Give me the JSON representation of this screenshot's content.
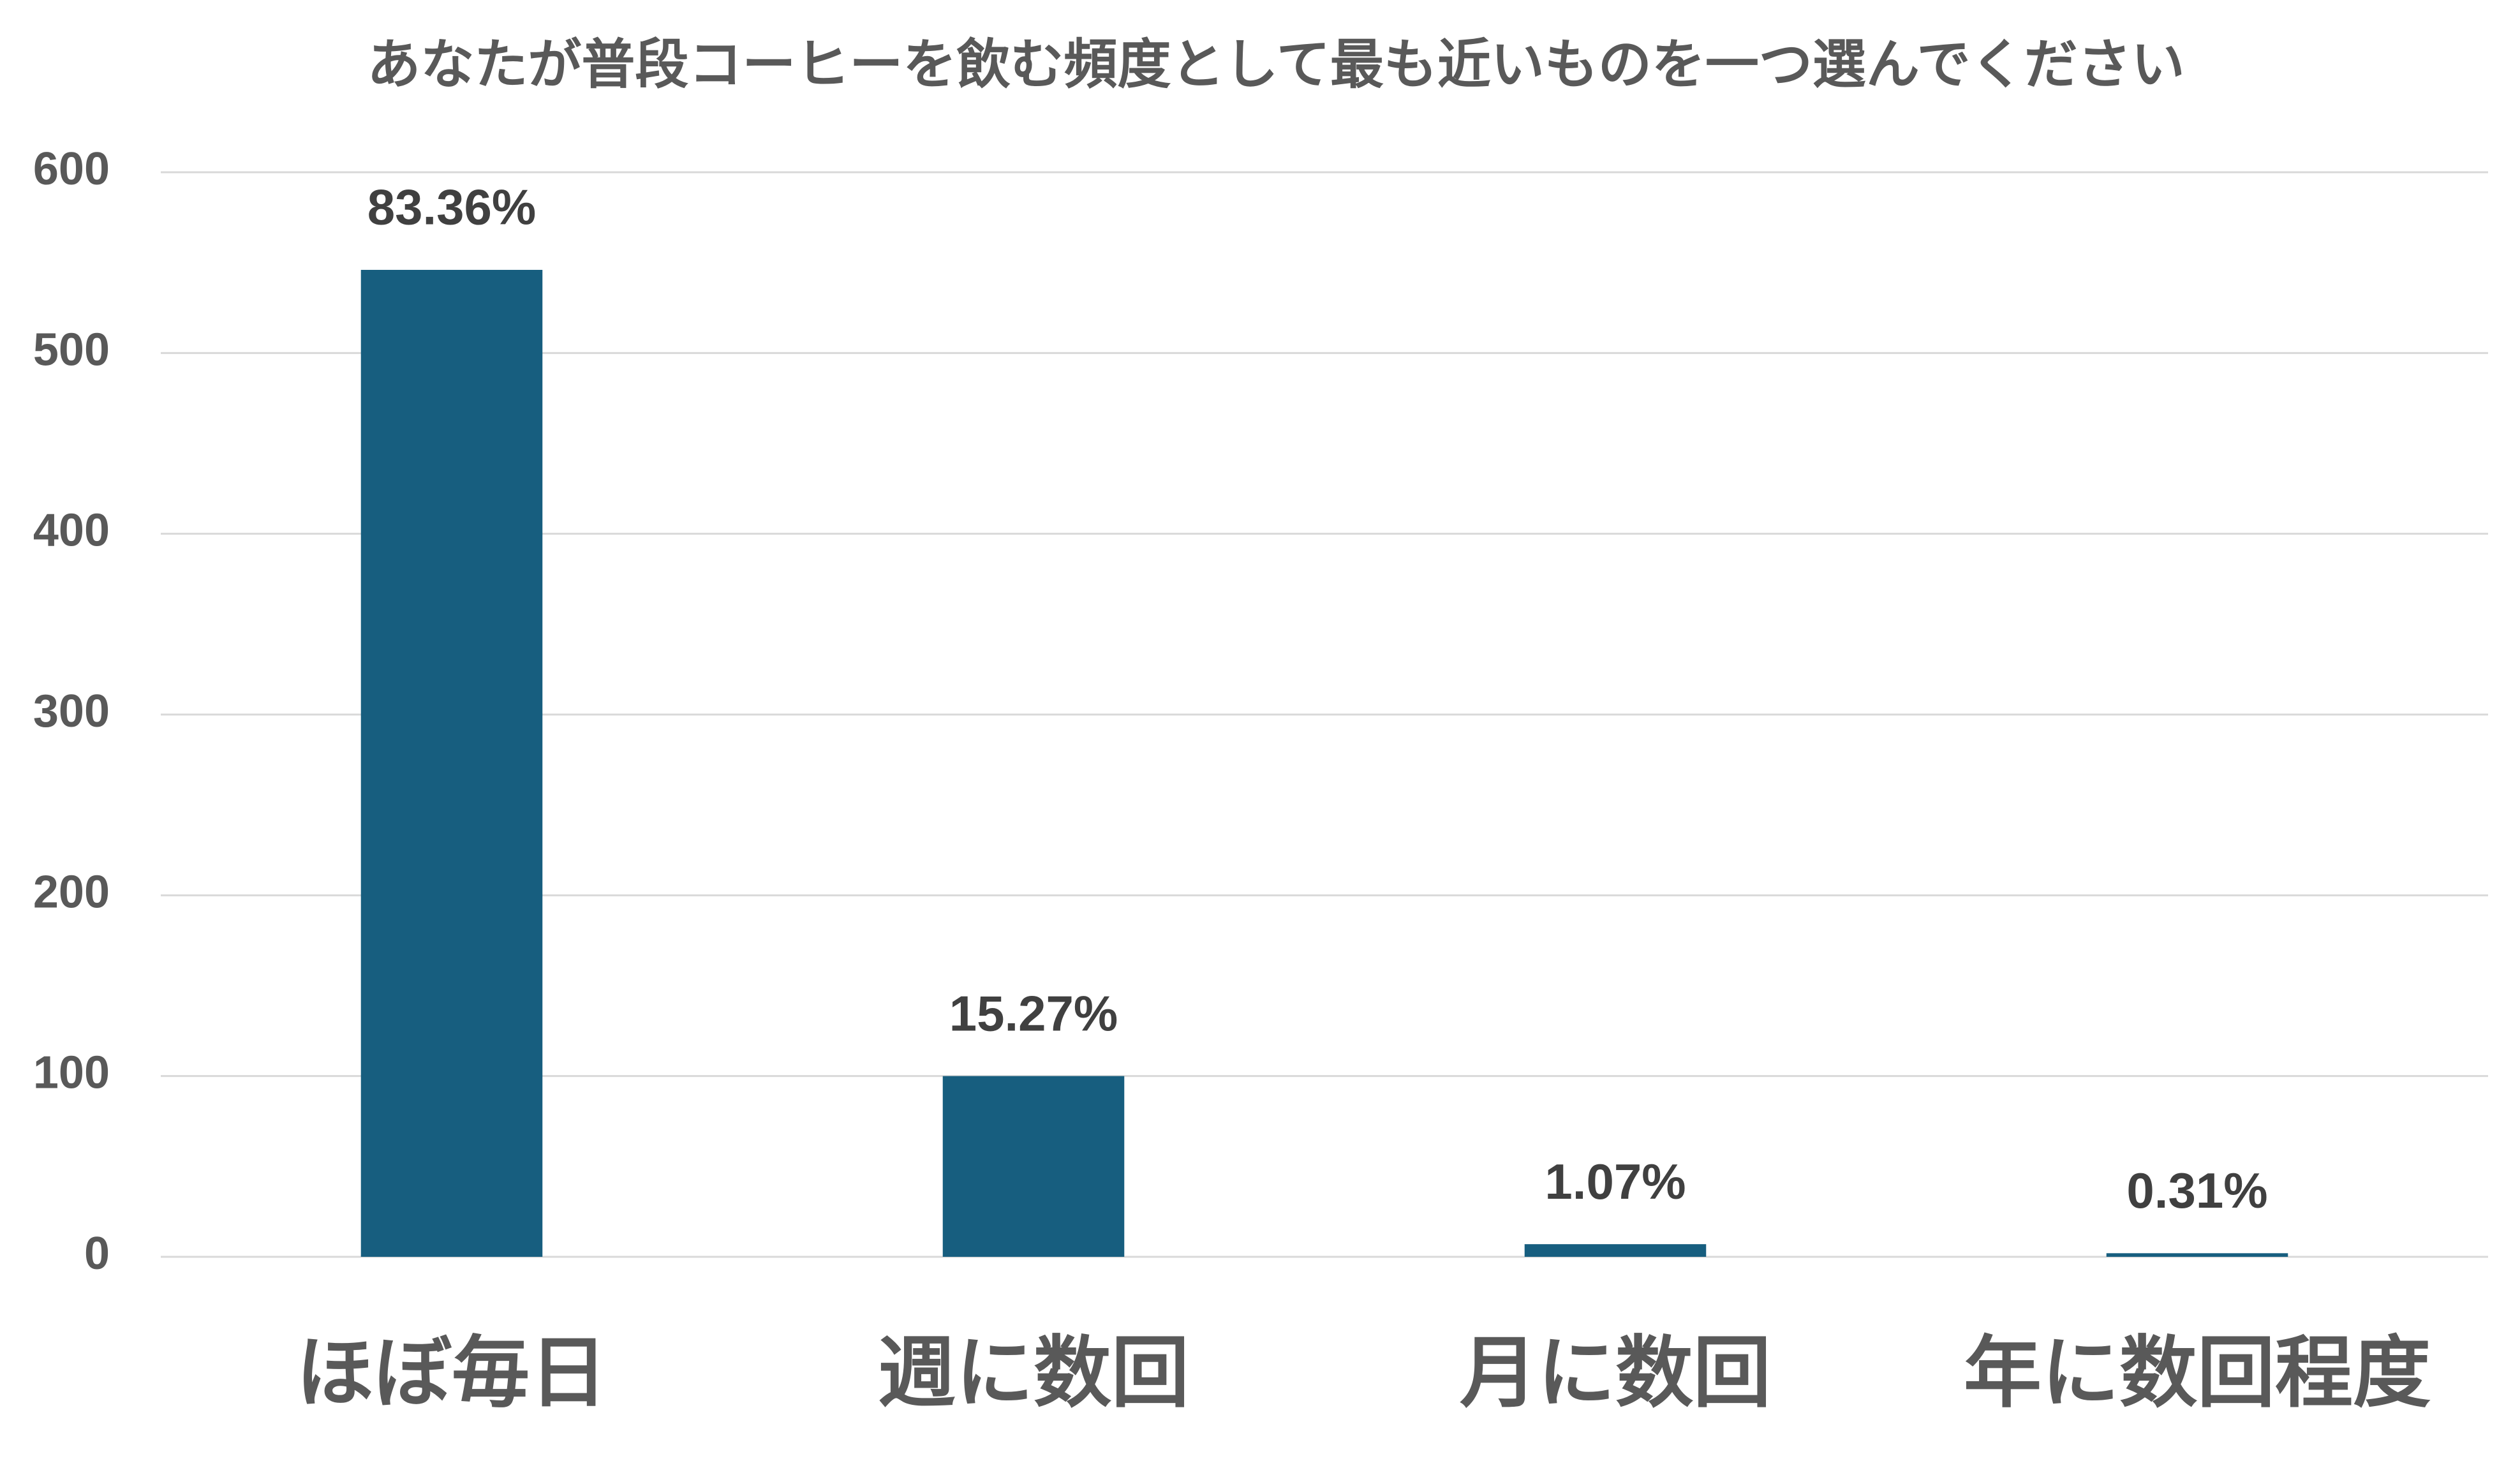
{
  "chart_data": {
    "type": "bar",
    "title": "あなたが普段コーヒーを飲む頻度として最も近いものを一つ選んでください",
    "categories": [
      "ほぼ毎日",
      "週に数回",
      "月に数回",
      "年に数回程度"
    ],
    "values": [
      546,
      100,
      7,
      2
    ],
    "value_labels": [
      "83.36%",
      "15.27%",
      "1.07%",
      "0.31%"
    ],
    "color": "#175e7f",
    "ylim": [
      0,
      600
    ],
    "yticks": [
      0,
      100,
      200,
      300,
      400,
      500,
      600
    ],
    "grid": true
  }
}
